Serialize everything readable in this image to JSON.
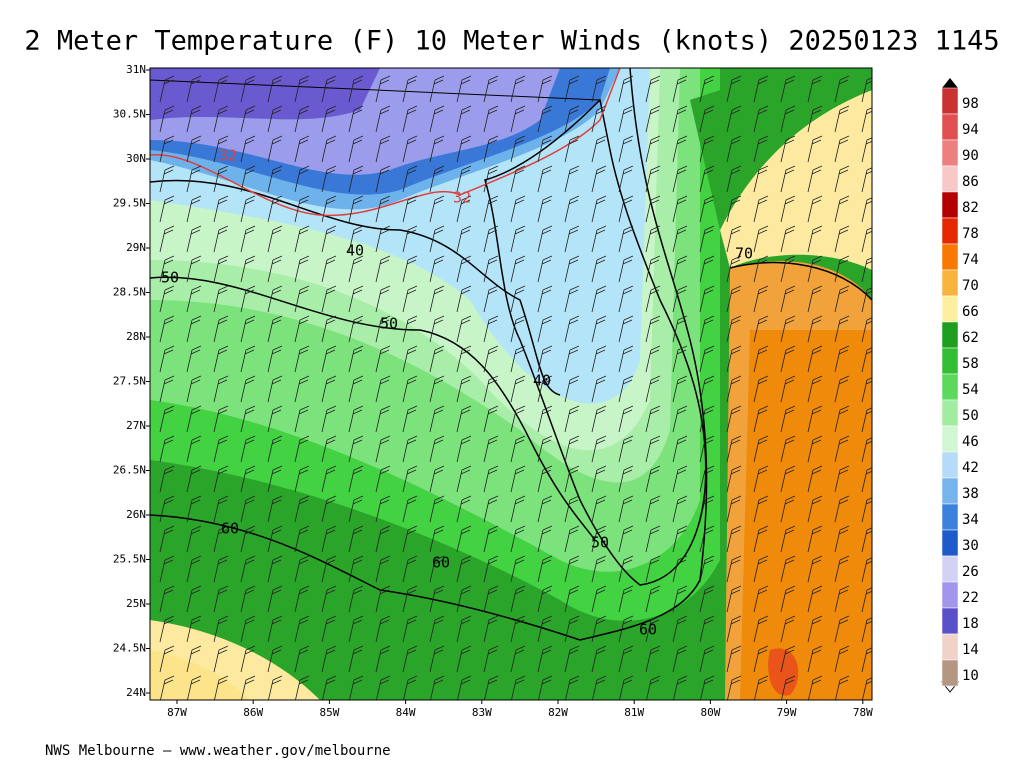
{
  "title": "2 Meter Temperature (F) 10 Meter Winds (knots) 20250123 1145",
  "footer": "NWS Melbourne — www.weather.gov/melbourne",
  "lat_labels": [
    "31N",
    "30.5N",
    "30N",
    "29.5N",
    "29N",
    "28.5N",
    "28N",
    "27.5N",
    "27N",
    "26.5N",
    "26N",
    "25.5N",
    "25N",
    "24.5N",
    "24N"
  ],
  "lon_labels": [
    "87W",
    "86W",
    "85W",
    "84W",
    "83W",
    "82W",
    "81W",
    "80W",
    "79W",
    "78W"
  ],
  "colorbar_labels": [
    98,
    94,
    90,
    86,
    82,
    78,
    74,
    70,
    66,
    62,
    58,
    54,
    50,
    46,
    42,
    38,
    34,
    30,
    26,
    22,
    18,
    14,
    10
  ],
  "contour_labels": [
    "32",
    "32",
    "40",
    "40",
    "50",
    "50",
    "50",
    "60",
    "60",
    "60",
    "70"
  ]
}
